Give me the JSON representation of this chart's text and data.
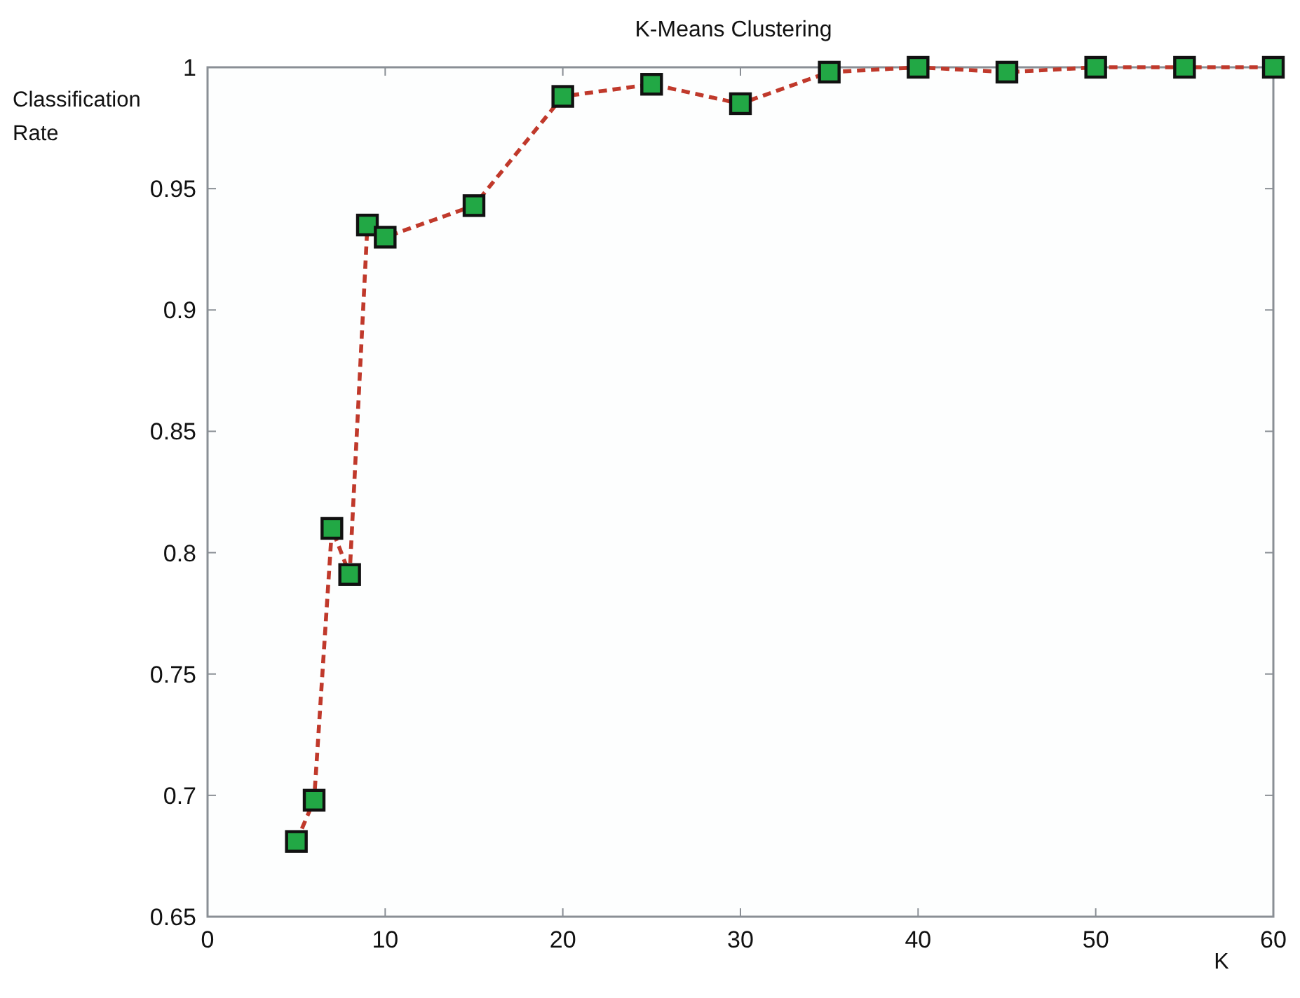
{
  "chart_data": {
    "type": "line",
    "title": "K-Means Clustering",
    "xlabel": "K",
    "ylabel": "Classification Rate",
    "x": [
      5,
      6,
      7,
      8,
      9,
      10,
      15,
      20,
      25,
      30,
      35,
      40,
      45,
      50,
      55,
      60
    ],
    "series": [
      {
        "color": "#c0392b",
        "values": [
          0.681,
          0.698,
          0.81,
          0.791,
          0.935,
          0.93,
          0.943,
          0.988,
          0.993,
          0.985,
          0.998,
          1.0,
          0.998,
          1.0,
          1.0,
          1.0
        ]
      }
    ],
    "xlim": [
      0,
      60
    ],
    "xticks": [
      0,
      10,
      20,
      30,
      40,
      50,
      60
    ],
    "ylim": [
      0.65,
      1
    ],
    "yticks": [
      0.65,
      0.7,
      0.75,
      0.8,
      0.85,
      0.9,
      0.95,
      1
    ],
    "grid": false,
    "marker": "square",
    "line_style": "dashed"
  }
}
